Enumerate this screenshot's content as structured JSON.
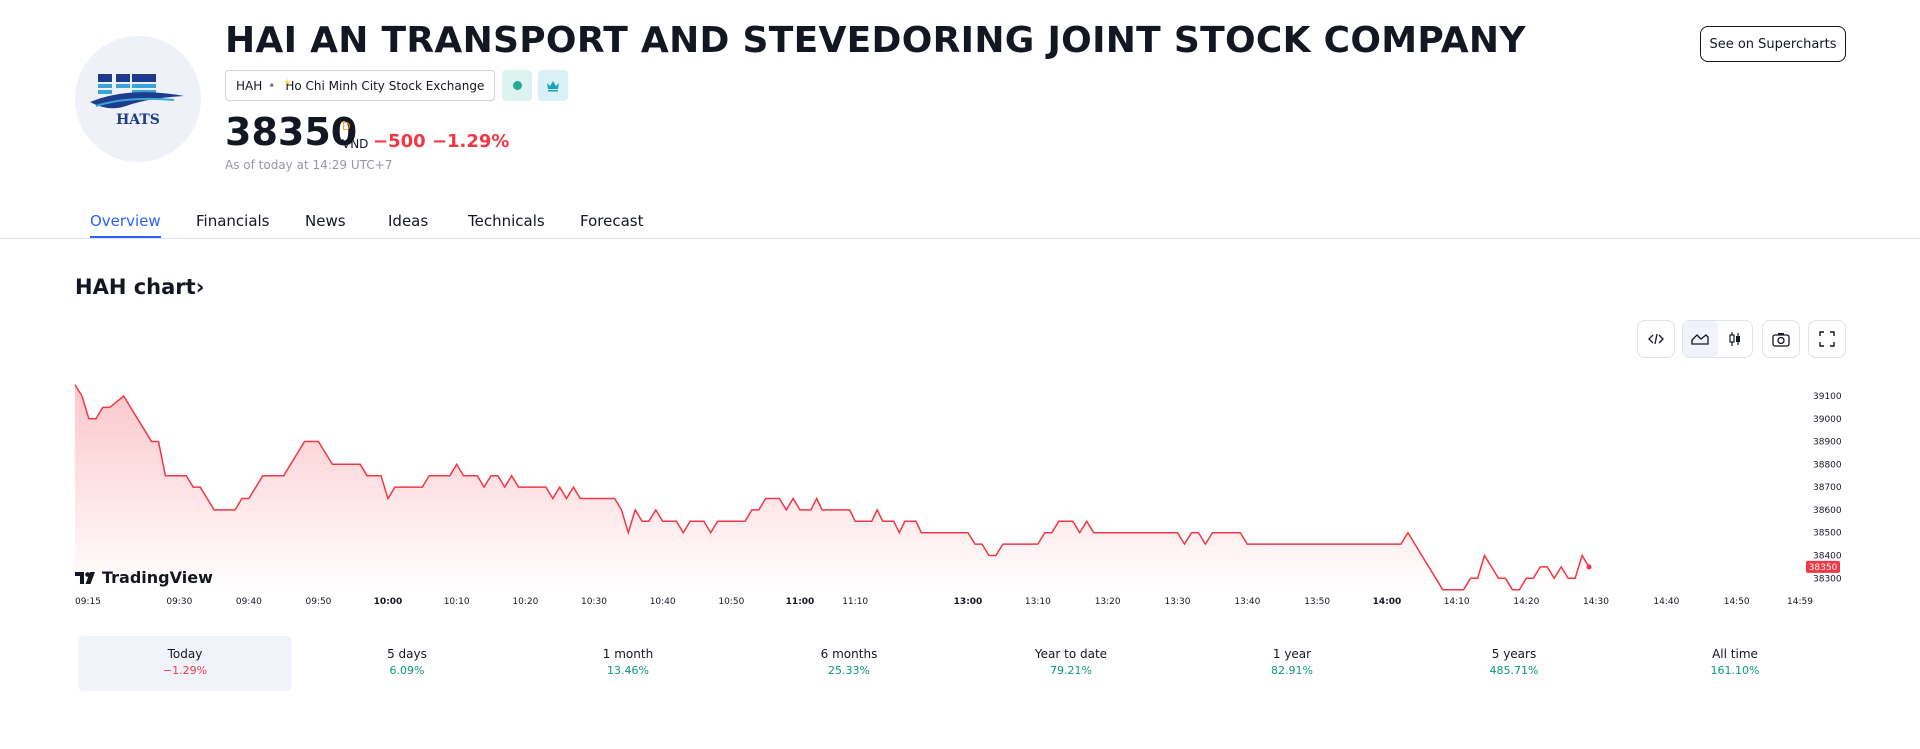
{
  "company": {
    "name": "HAI AN TRANSPORT AND STEVEDORING JOINT STOCK COMPANY",
    "ticker": "HAH",
    "exchange": "Ho Chi Minh City Stock Exchange",
    "logo_text": "HATS"
  },
  "quote": {
    "price": "38350",
    "suffix": "D",
    "currency": "VND",
    "change": "−500",
    "change_percent": "−1.29%",
    "as_of": "As of today at 14:29 UTC+7"
  },
  "header": {
    "supercharts_label": "See on Supercharts"
  },
  "tabs": [
    {
      "label": "Overview",
      "active": true
    },
    {
      "label": "Financials"
    },
    {
      "label": "News"
    },
    {
      "label": "Ideas"
    },
    {
      "label": "Technicals"
    },
    {
      "label": "Forecast"
    }
  ],
  "chart_section": {
    "title": "HAH chart",
    "arrow": "›",
    "watermark": "TradingView"
  },
  "chart_data": {
    "type": "area",
    "series": [
      {
        "color": "#f23645",
        "points": [
          [
            "09:15",
            39150
          ],
          [
            "09:16",
            39100
          ],
          [
            "09:17",
            39000
          ],
          [
            "09:18",
            39000
          ],
          [
            "09:19",
            39050
          ],
          [
            "09:20",
            39050
          ],
          [
            "09:22",
            39100
          ],
          [
            "09:23",
            39050
          ],
          [
            "09:24",
            39000
          ],
          [
            "09:25",
            38950
          ],
          [
            "09:26",
            38900
          ],
          [
            "09:27",
            38900
          ],
          [
            "09:28",
            38750
          ],
          [
            "09:29",
            38750
          ],
          [
            "09:30",
            38750
          ],
          [
            "09:31",
            38750
          ],
          [
            "09:32",
            38700
          ],
          [
            "09:33",
            38700
          ],
          [
            "09:34",
            38650
          ],
          [
            "09:35",
            38600
          ],
          [
            "09:36",
            38600
          ],
          [
            "09:37",
            38600
          ],
          [
            "09:38",
            38600
          ],
          [
            "09:39",
            38650
          ],
          [
            "09:40",
            38650
          ],
          [
            "09:41",
            38700
          ],
          [
            "09:42",
            38750
          ],
          [
            "09:43",
            38750
          ],
          [
            "09:44",
            38750
          ],
          [
            "09:45",
            38750
          ],
          [
            "09:46",
            38800
          ],
          [
            "09:47",
            38850
          ],
          [
            "09:48",
            38900
          ],
          [
            "09:49",
            38900
          ],
          [
            "09:50",
            38900
          ],
          [
            "09:51",
            38850
          ],
          [
            "09:52",
            38800
          ],
          [
            "09:53",
            38800
          ],
          [
            "09:54",
            38800
          ],
          [
            "09:55",
            38800
          ],
          [
            "09:56",
            38800
          ],
          [
            "09:57",
            38750
          ],
          [
            "09:58",
            38750
          ],
          [
            "09:59",
            38750
          ],
          [
            "10:00",
            38650
          ],
          [
            "10:01",
            38700
          ],
          [
            "10:02",
            38700
          ],
          [
            "10:03",
            38700
          ],
          [
            "10:04",
            38700
          ],
          [
            "10:05",
            38700
          ],
          [
            "10:06",
            38750
          ],
          [
            "10:07",
            38750
          ],
          [
            "10:08",
            38750
          ],
          [
            "10:09",
            38750
          ],
          [
            "10:10",
            38800
          ],
          [
            "10:11",
            38750
          ],
          [
            "10:12",
            38750
          ],
          [
            "10:13",
            38750
          ],
          [
            "10:14",
            38700
          ],
          [
            "10:15",
            38750
          ],
          [
            "10:16",
            38750
          ],
          [
            "10:17",
            38700
          ],
          [
            "10:18",
            38750
          ],
          [
            "10:19",
            38700
          ],
          [
            "10:20",
            38700
          ],
          [
            "10:21",
            38700
          ],
          [
            "10:22",
            38700
          ],
          [
            "10:23",
            38700
          ],
          [
            "10:24",
            38650
          ],
          [
            "10:25",
            38700
          ],
          [
            "10:26",
            38650
          ],
          [
            "10:27",
            38700
          ],
          [
            "10:28",
            38650
          ],
          [
            "10:29",
            38650
          ],
          [
            "10:30",
            38650
          ],
          [
            "10:31",
            38650
          ],
          [
            "10:32",
            38650
          ],
          [
            "10:33",
            38650
          ],
          [
            "10:34",
            38600
          ],
          [
            "10:35",
            38500
          ],
          [
            "10:36",
            38600
          ],
          [
            "10:37",
            38550
          ],
          [
            "10:38",
            38550
          ],
          [
            "10:39",
            38600
          ],
          [
            "10:40",
            38550
          ],
          [
            "10:41",
            38550
          ],
          [
            "10:42",
            38550
          ],
          [
            "10:43",
            38500
          ],
          [
            "10:44",
            38550
          ],
          [
            "10:45",
            38550
          ],
          [
            "10:46",
            38550
          ],
          [
            "10:47",
            38500
          ],
          [
            "10:48",
            38550
          ],
          [
            "10:49",
            38550
          ],
          [
            "10:50",
            38550
          ],
          [
            "10:51",
            38550
          ],
          [
            "10:52",
            38550
          ],
          [
            "10:53",
            38600
          ],
          [
            "10:54",
            38600
          ],
          [
            "10:55",
            38650
          ],
          [
            "10:56",
            38650
          ],
          [
            "10:57",
            38650
          ],
          [
            "10:58",
            38600
          ],
          [
            "10:59",
            38650
          ],
          [
            "11:00",
            38600
          ],
          [
            "11:01",
            38600
          ],
          [
            "11:02",
            38600
          ],
          [
            "11:03",
            38650
          ],
          [
            "11:04",
            38600
          ],
          [
            "11:05",
            38600
          ],
          [
            "11:06",
            38600
          ],
          [
            "11:07",
            38600
          ],
          [
            "11:08",
            38600
          ],
          [
            "11:09",
            38600
          ],
          [
            "11:10",
            38550
          ],
          [
            "11:11",
            38550
          ],
          [
            "11:12",
            38550
          ],
          [
            "11:13",
            38550
          ],
          [
            "11:14",
            38600
          ],
          [
            "11:15",
            38550
          ],
          [
            "11:16",
            38550
          ],
          [
            "11:17",
            38550
          ],
          [
            "11:18",
            38500
          ],
          [
            "11:19",
            38550
          ],
          [
            "11:20",
            38550
          ],
          [
            "11:21",
            38550
          ],
          [
            "11:22",
            38500
          ],
          [
            "11:23",
            38500
          ],
          [
            "11:24",
            38500
          ],
          [
            "11:25",
            38500
          ],
          [
            "11:26",
            38500
          ],
          [
            "11:27",
            38500
          ],
          [
            "11:28",
            38500
          ],
          [
            "11:29",
            38500
          ],
          [
            "13:00",
            38500
          ],
          [
            "13:01",
            38450
          ],
          [
            "13:02",
            38450
          ],
          [
            "13:03",
            38400
          ],
          [
            "13:04",
            38400
          ],
          [
            "13:05",
            38450
          ],
          [
            "13:06",
            38450
          ],
          [
            "13:07",
            38450
          ],
          [
            "13:08",
            38450
          ],
          [
            "13:09",
            38450
          ],
          [
            "13:10",
            38450
          ],
          [
            "13:11",
            38500
          ],
          [
            "13:12",
            38500
          ],
          [
            "13:13",
            38550
          ],
          [
            "13:14",
            38550
          ],
          [
            "13:15",
            38550
          ],
          [
            "13:16",
            38500
          ],
          [
            "13:17",
            38550
          ],
          [
            "13:18",
            38500
          ],
          [
            "13:19",
            38500
          ],
          [
            "13:20",
            38500
          ],
          [
            "13:21",
            38500
          ],
          [
            "13:22",
            38500
          ],
          [
            "13:23",
            38500
          ],
          [
            "13:24",
            38500
          ],
          [
            "13:25",
            38500
          ],
          [
            "13:26",
            38500
          ],
          [
            "13:27",
            38500
          ],
          [
            "13:28",
            38500
          ],
          [
            "13:29",
            38500
          ],
          [
            "13:30",
            38500
          ],
          [
            "13:31",
            38450
          ],
          [
            "13:32",
            38500
          ],
          [
            "13:33",
            38500
          ],
          [
            "13:34",
            38450
          ],
          [
            "13:35",
            38500
          ],
          [
            "13:36",
            38500
          ],
          [
            "13:37",
            38500
          ],
          [
            "13:38",
            38500
          ],
          [
            "13:39",
            38500
          ],
          [
            "13:40",
            38450
          ],
          [
            "13:41",
            38450
          ],
          [
            "13:42",
            38450
          ],
          [
            "13:43",
            38450
          ],
          [
            "13:44",
            38450
          ],
          [
            "13:45",
            38450
          ],
          [
            "13:46",
            38450
          ],
          [
            "13:47",
            38450
          ],
          [
            "13:48",
            38450
          ],
          [
            "13:49",
            38450
          ],
          [
            "13:50",
            38450
          ],
          [
            "13:51",
            38450
          ],
          [
            "13:52",
            38450
          ],
          [
            "13:53",
            38450
          ],
          [
            "13:54",
            38450
          ],
          [
            "13:55",
            38450
          ],
          [
            "13:56",
            38450
          ],
          [
            "13:57",
            38450
          ],
          [
            "13:58",
            38450
          ],
          [
            "13:59",
            38450
          ],
          [
            "14:00",
            38450
          ],
          [
            "14:01",
            38450
          ],
          [
            "14:02",
            38450
          ],
          [
            "14:03",
            38500
          ],
          [
            "14:04",
            38450
          ],
          [
            "14:05",
            38400
          ],
          [
            "14:06",
            38350
          ],
          [
            "14:07",
            38300
          ],
          [
            "14:08",
            38250
          ],
          [
            "14:09",
            38250
          ],
          [
            "14:10",
            38250
          ],
          [
            "14:11",
            38250
          ],
          [
            "14:12",
            38300
          ],
          [
            "14:13",
            38300
          ],
          [
            "14:14",
            38400
          ],
          [
            "14:15",
            38350
          ],
          [
            "14:16",
            38300
          ],
          [
            "14:17",
            38300
          ],
          [
            "14:18",
            38250
          ],
          [
            "14:19",
            38250
          ],
          [
            "14:20",
            38300
          ],
          [
            "14:21",
            38300
          ],
          [
            "14:22",
            38350
          ],
          [
            "14:23",
            38350
          ],
          [
            "14:24",
            38300
          ],
          [
            "14:25",
            38350
          ],
          [
            "14:26",
            38300
          ],
          [
            "14:27",
            38300
          ],
          [
            "14:28",
            38400
          ],
          [
            "14:29",
            38350
          ]
        ]
      }
    ],
    "x_ticks": [
      {
        "label": "09:15",
        "time": "09:15",
        "bold": false
      },
      {
        "label": "09:30",
        "time": "09:30",
        "bold": false
      },
      {
        "label": "09:40",
        "time": "09:40",
        "bold": false
      },
      {
        "label": "09:50",
        "time": "09:50",
        "bold": false
      },
      {
        "label": "10:00",
        "time": "10:00",
        "bold": true
      },
      {
        "label": "10:10",
        "time": "10:10",
        "bold": false
      },
      {
        "label": "10:20",
        "time": "10:20",
        "bold": false
      },
      {
        "label": "10:30",
        "time": "10:30",
        "bold": false
      },
      {
        "label": "10:40",
        "time": "10:40",
        "bold": false
      },
      {
        "label": "10:50",
        "time": "10:50",
        "bold": false
      },
      {
        "label": "11:00",
        "time": "11:00",
        "bold": true
      },
      {
        "label": "11:10",
        "time": "11:10",
        "bold": false
      },
      {
        "label": "13:00",
        "time": "13:00",
        "bold": true
      },
      {
        "label": "13:10",
        "time": "13:10",
        "bold": false
      },
      {
        "label": "13:20",
        "time": "13:20",
        "bold": false
      },
      {
        "label": "13:30",
        "time": "13:30",
        "bold": false
      },
      {
        "label": "13:40",
        "time": "13:40",
        "bold": false
      },
      {
        "label": "13:50",
        "time": "13:50",
        "bold": false
      },
      {
        "label": "14:00",
        "time": "14:00",
        "bold": true
      },
      {
        "label": "14:10",
        "time": "14:10",
        "bold": false
      },
      {
        "label": "14:20",
        "time": "14:20",
        "bold": false
      },
      {
        "label": "14:30",
        "time": "14:30",
        "bold": false
      },
      {
        "label": "14:40",
        "time": "14:40",
        "bold": false
      },
      {
        "label": "14:50",
        "time": "14:50",
        "bold": false
      },
      {
        "label": "14:59",
        "time": "14:59",
        "bold": false
      }
    ],
    "y_ticks": [
      38300,
      38400,
      38500,
      38600,
      38700,
      38800,
      38900,
      39000,
      39100
    ],
    "ylim": [
      38240,
      39170
    ],
    "last_price_label": "38350",
    "grid": false,
    "colors": {
      "line": "#f23645",
      "fill_top": "#f23645",
      "fill_bottom": "#ffffff"
    }
  },
  "periods": [
    {
      "label": "Today",
      "value": "−1.29%",
      "sign": "neg",
      "active": true
    },
    {
      "label": "5 days",
      "value": "6.09%",
      "sign": "pos"
    },
    {
      "label": "1 month",
      "value": "13.46%",
      "sign": "pos"
    },
    {
      "label": "6 months",
      "value": "25.33%",
      "sign": "pos"
    },
    {
      "label": "Year to date",
      "value": "79.21%",
      "sign": "pos"
    },
    {
      "label": "1 year",
      "value": "82.91%",
      "sign": "pos"
    },
    {
      "label": "5 years",
      "value": "485.71%",
      "sign": "pos"
    },
    {
      "label": "All time",
      "value": "161.10%",
      "sign": "pos"
    }
  ],
  "icons": [
    "embed-code-icon",
    "area-chart-icon",
    "candles-icon",
    "camera-icon",
    "fullscreen-icon",
    "crown-icon",
    "market-open-icon",
    "tradingview-logo-icon"
  ]
}
